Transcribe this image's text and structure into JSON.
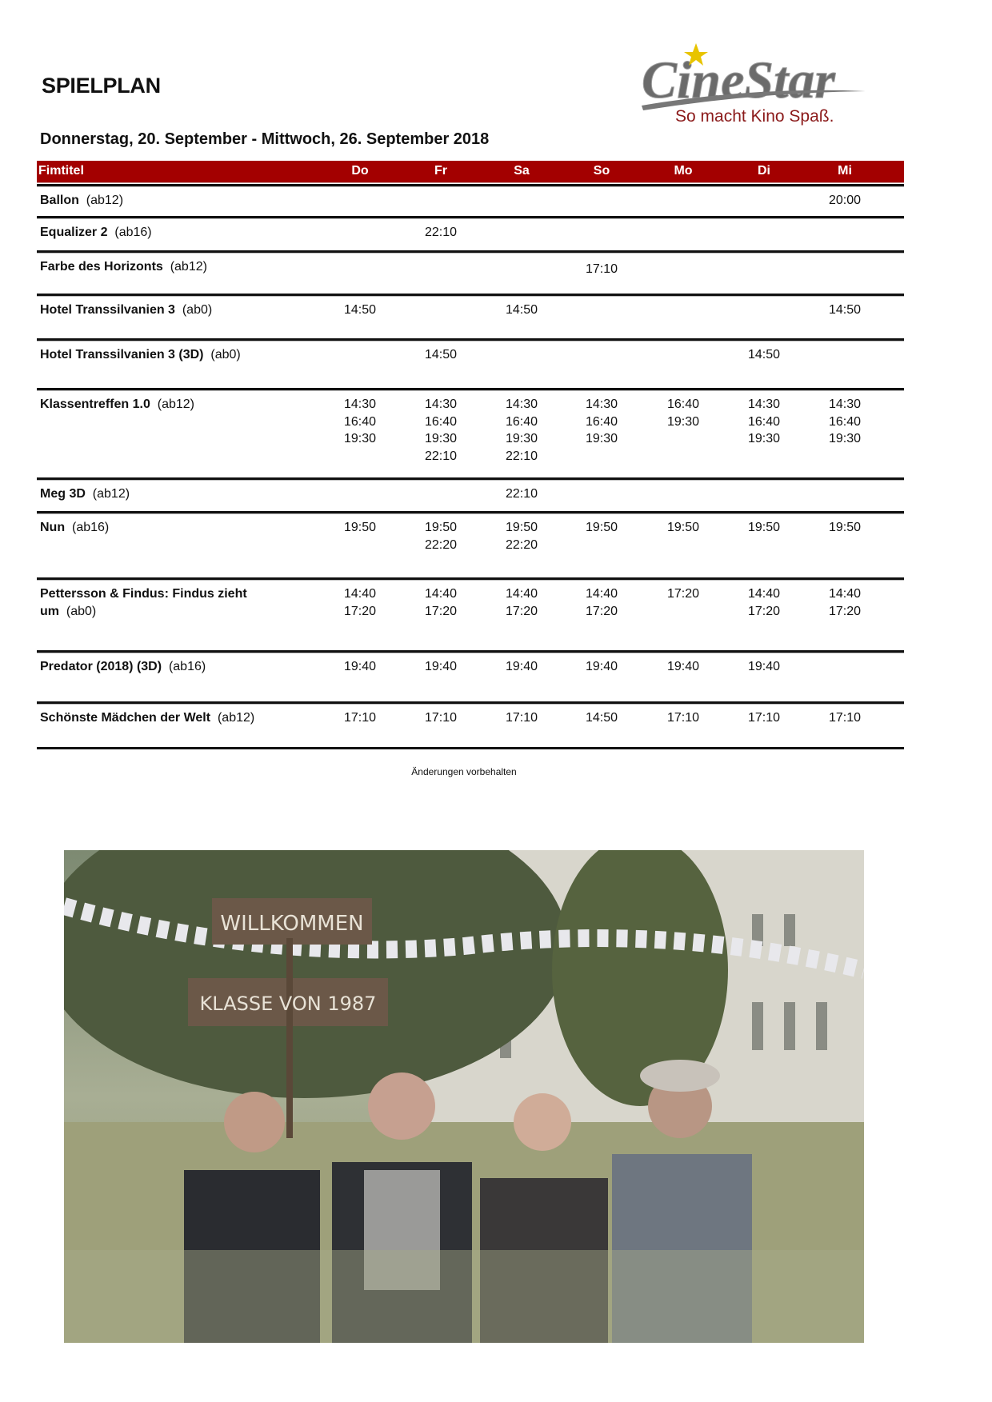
{
  "title": "SPIELPLAN",
  "date_range": "Donnerstag, 20. September - Mittwoch, 26. September 2018",
  "logo": {
    "brand": "CineStar",
    "slogan": "So macht Kino Spaß.",
    "color_text": "#6b6b6b",
    "color_slogan": "#8b1a1a",
    "color_star": "#e8c400"
  },
  "colors": {
    "header_bg": "#a30000"
  },
  "table": {
    "headers": [
      "Fimtitel",
      "Do",
      "Fr",
      "Sa",
      "So",
      "Mo",
      "Di",
      "Mi"
    ],
    "rows": [
      {
        "title": "Ballon",
        "rating": "(ab12)",
        "times": [
          [],
          [],
          [],
          [],
          [],
          [],
          [
            "20:00"
          ]
        ]
      },
      {
        "title": "Equalizer 2",
        "rating": "(ab16)",
        "times": [
          [],
          [
            "22:10"
          ],
          [],
          [],
          [],
          [],
          []
        ]
      },
      {
        "title": "Farbe des Horizonts",
        "rating": "(ab12)",
        "times": [
          [],
          [],
          [],
          [
            "17:10"
          ],
          [],
          [],
          []
        ]
      },
      {
        "title": "Hotel Transsilvanien 3",
        "rating": "(ab0)",
        "times": [
          [
            "14:50"
          ],
          [],
          [
            "14:50"
          ],
          [],
          [],
          [],
          [
            "14:50"
          ]
        ]
      },
      {
        "title": "Hotel Transsilvanien 3 (3D)",
        "rating": "(ab0)",
        "times": [
          [],
          [
            "14:50"
          ],
          [],
          [],
          [],
          [
            "14:50"
          ],
          []
        ]
      },
      {
        "title": "Klassentreffen 1.0",
        "rating": "(ab12)",
        "times": [
          [
            "14:30",
            "16:40",
            "19:30"
          ],
          [
            "14:30",
            "16:40",
            "19:30",
            "22:10"
          ],
          [
            "14:30",
            "16:40",
            "19:30",
            "22:10"
          ],
          [
            "14:30",
            "16:40",
            "19:30"
          ],
          [
            "16:40",
            "19:30"
          ],
          [
            "14:30",
            "16:40",
            "19:30"
          ],
          [
            "14:30",
            "16:40",
            "19:30"
          ]
        ]
      },
      {
        "title": "Meg 3D",
        "rating": "(ab12)",
        "times": [
          [],
          [],
          [
            "22:10"
          ],
          [],
          [],
          [],
          []
        ]
      },
      {
        "title": "Nun",
        "rating": "(ab16)",
        "times": [
          [
            "19:50"
          ],
          [
            "19:50",
            "22:20"
          ],
          [
            "19:50",
            "22:20"
          ],
          [
            "19:50"
          ],
          [
            "19:50"
          ],
          [
            "19:50"
          ],
          [
            "19:50"
          ]
        ]
      },
      {
        "title": "Pettersson & Findus: Findus zieht um",
        "rating": "(ab0)",
        "times": [
          [
            "14:40",
            "17:20"
          ],
          [
            "14:40",
            "17:20"
          ],
          [
            "14:40",
            "17:20"
          ],
          [
            "14:40",
            "17:20"
          ],
          [
            "17:20"
          ],
          [
            "14:40",
            "17:20"
          ],
          [
            "14:40",
            "17:20"
          ]
        ]
      },
      {
        "title": "Predator (2018) (3D)",
        "rating": "(ab16)",
        "times": [
          [
            "19:40"
          ],
          [
            "19:40"
          ],
          [
            "19:40"
          ],
          [
            "19:40"
          ],
          [
            "19:40"
          ],
          [
            "19:40"
          ],
          []
        ]
      },
      {
        "title": "Schönste Mädchen der Welt",
        "rating": "(ab12)",
        "times": [
          [
            "17:10"
          ],
          [
            "17:10"
          ],
          [
            "17:10"
          ],
          [
            "14:50"
          ],
          [
            "17:10"
          ],
          [
            "17:10"
          ],
          [
            "17:10"
          ]
        ]
      }
    ]
  },
  "footer": "Änderungen vorbehalten",
  "photo": {
    "sign_line1": "WILLKOMMEN",
    "sign_line2": "KLASSE VON 1987"
  }
}
